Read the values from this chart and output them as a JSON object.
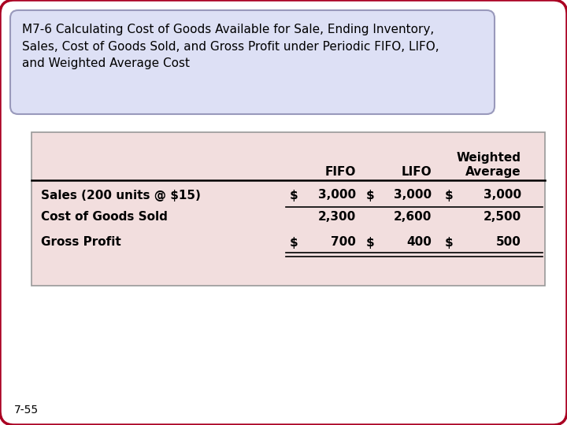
{
  "title_line1": "M7-6 Calculating Cost of Goods Available for Sale, Ending Inventory,",
  "title_line2": "Sales, Cost of Goods Sold, and Gross Profit under Periodic FIFO, LIFO,",
  "title_line3": "and Weighted Average Cost",
  "outer_bg": "#ffffff",
  "outer_border_color": "#aa0022",
  "title_box_bg": "#dde0f5",
  "title_box_border": "#9999bb",
  "table_bg": "#f2dede",
  "table_border": "#999999",
  "col_header1": "FIFO",
  "col_header2": "LIFO",
  "col_header3a": "Weighted",
  "col_header3b": "Average",
  "rows": [
    [
      "Sales (200 units @ $15)",
      "$",
      "3,000",
      "$",
      "3,000",
      "$",
      "3,000"
    ],
    [
      "Cost of Goods Sold",
      "",
      "2,300",
      "",
      "2,600",
      "",
      "2,500"
    ],
    [
      "Gross Profit",
      "$",
      "700",
      "$",
      "400",
      "$",
      "500"
    ]
  ],
  "footer_label": "7-55",
  "fontsize": 11,
  "title_fontsize": 11
}
